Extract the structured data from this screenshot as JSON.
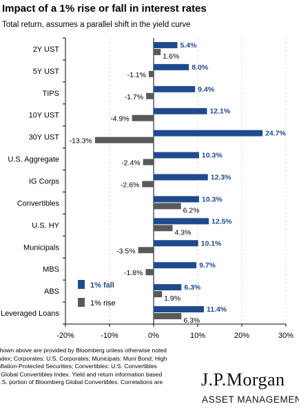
{
  "title": "Impact of a 1% rise or fall in interest rates",
  "subtitle": "Total return, assumes a parallel shift in the yield curve",
  "chart_data": {
    "type": "bar",
    "orientation": "horizontal",
    "categories": [
      "2Y UST",
      "5Y UST",
      "TIPS",
      "10Y UST",
      "30Y UST",
      "U.S. Aggregate",
      "IG Corps",
      "Convertibles",
      "U.S. HY",
      "Municipals",
      "MBS",
      "ABS",
      "Leveraged Loans"
    ],
    "series": [
      {
        "name": "1% fall",
        "color": "#1f4a8c",
        "values": [
          5.4,
          8.0,
          9.4,
          12.1,
          24.7,
          10.3,
          12.3,
          10.3,
          12.5,
          10.1,
          9.7,
          6.3,
          11.4
        ],
        "labels": [
          "5.4%",
          "8.0%",
          "9.4%",
          "12.1%",
          "24.7%",
          "10.3%",
          "12.3%",
          "10.3%",
          "12.5%",
          "10.1%",
          "9.7%",
          "6.3%",
          "11.4%"
        ]
      },
      {
        "name": "1% rise",
        "color": "#595959",
        "values": [
          1.6,
          -1.1,
          -1.7,
          -4.9,
          -13.3,
          -2.4,
          -2.6,
          6.2,
          4.3,
          -3.5,
          -1.8,
          1.9,
          6.3
        ],
        "labels": [
          "1.6%",
          "-1.1%",
          "-1.7%",
          "-4.9%",
          "-13.3%",
          "-2.4%",
          "-2.6%",
          "6.2%",
          "4.3%",
          "-3.5%",
          "-1.8%",
          "1.9%",
          "6.3%"
        ]
      }
    ],
    "xlim": [
      -20,
      30
    ],
    "xticks": [
      -20,
      -10,
      0,
      10,
      20,
      30
    ],
    "xtick_labels": [
      "-20%",
      "-10%",
      "0%",
      "10%",
      "20%",
      "30%"
    ],
    "grid": "vertical dashed",
    "legend_position": "bottom-left"
  },
  "footnote_lines": [
    "Shown above are provided by Bloomberg unless otherwise noted",
    "Index; Corporates: U.S. Corporates; Municipals: Muni Bond; High",
    "Inflation-Protected Securities; Convertibles: U.S. Convertibles",
    "g Global Convertibles Index. Yield and return information based",
    "U.S. portion of Bloomberg Global Convertibles. Correlations are"
  ],
  "logo": {
    "name": "J.P.Morgan",
    "tagline": "ASSET MANAGEMENT"
  }
}
